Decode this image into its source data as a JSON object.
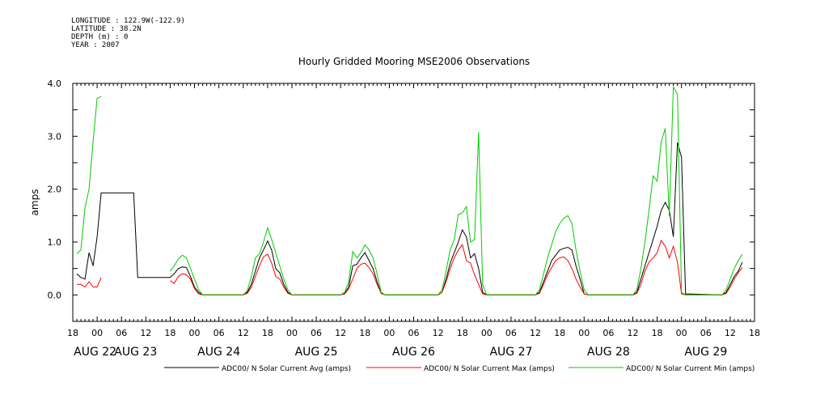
{
  "header": {
    "lines": [
      "LONGITUDE : 122.9W(-122.9)",
      "LATITUDE : 38.2N",
      "DEPTH (m) : 0",
      "YEAR : 2007"
    ]
  },
  "chart_data": {
    "type": "line",
    "title": "Hourly Gridded Mooring MSE2006 Observations",
    "ylabel": "amps",
    "ylim": [
      -0.5,
      4.0
    ],
    "yticks": [
      "0.0",
      "1.0",
      "2.0",
      "3.0",
      "4.0"
    ],
    "ytick_values": [
      0,
      1,
      2,
      3,
      4
    ],
    "xlim": [
      -6,
      162
    ],
    "xticks_hours": [
      -6,
      0,
      6,
      12,
      18,
      24,
      30,
      36,
      42,
      48,
      54,
      60,
      66,
      72,
      78,
      84,
      90,
      96,
      102,
      108,
      114,
      120,
      126,
      132,
      138,
      144,
      150,
      156,
      162
    ],
    "xtick_labels": [
      "18",
      "00",
      "06",
      "12",
      "18",
      "00",
      "06",
      "12",
      "18",
      "00",
      "06",
      "12",
      "18",
      "00",
      "06",
      "12",
      "18",
      "00",
      "06",
      "12",
      "18",
      "00",
      "06",
      "12",
      "18",
      "00",
      "06",
      "12",
      "18"
    ],
    "day_labels": [
      {
        "label": "AUG 22",
        "hour": -0.5
      },
      {
        "label": "AUG 23",
        "hour": 9.5
      },
      {
        "label": "AUG 24",
        "hour": 30
      },
      {
        "label": "AUG 25",
        "hour": 54
      },
      {
        "label": "AUG 26",
        "hour": 78
      },
      {
        "label": "AUG 27",
        "hour": 102
      },
      {
        "label": "AUG 28",
        "hour": 126
      },
      {
        "label": "AUG 29",
        "hour": 150
      }
    ],
    "series": [
      {
        "name": "ADC00/ N Solar Current Avg (amps)",
        "color": "#000000",
        "segments": [
          [
            [
              -5,
              0.4
            ],
            [
              -4,
              0.33
            ],
            [
              -3,
              0.3
            ],
            [
              -2,
              0.8
            ],
            [
              -1,
              0.55
            ],
            [
              0,
              1.1
            ],
            [
              1,
              1.93
            ],
            [
              9,
              1.93
            ],
            [
              10,
              0.33
            ],
            [
              18,
              0.33
            ],
            [
              19,
              0.4
            ],
            [
              20,
              0.5
            ],
            [
              21,
              0.53
            ],
            [
              22,
              0.52
            ],
            [
              23,
              0.35
            ],
            [
              24,
              0.15
            ],
            [
              25,
              0.05
            ],
            [
              26,
              0
            ],
            [
              36,
              0
            ],
            [
              37,
              0.05
            ],
            [
              38,
              0.2
            ],
            [
              39,
              0.45
            ],
            [
              40,
              0.7
            ],
            [
              41,
              0.85
            ],
            [
              42,
              1.02
            ],
            [
              43,
              0.85
            ],
            [
              44,
              0.5
            ],
            [
              45,
              0.42
            ],
            [
              46,
              0.2
            ],
            [
              47,
              0.05
            ],
            [
              48,
              0
            ],
            [
              60,
              0
            ],
            [
              61,
              0.03
            ],
            [
              62,
              0.15
            ],
            [
              63,
              0.55
            ],
            [
              64,
              0.58
            ],
            [
              65,
              0.7
            ],
            [
              66,
              0.8
            ],
            [
              67,
              0.65
            ],
            [
              68,
              0.5
            ],
            [
              69,
              0.25
            ],
            [
              70,
              0.03
            ],
            [
              71,
              0
            ],
            [
              84,
              0
            ],
            [
              85,
              0.05
            ],
            [
              86,
              0.3
            ],
            [
              87,
              0.6
            ],
            [
              88,
              0.8
            ],
            [
              89,
              1.0
            ],
            [
              90,
              1.23
            ],
            [
              91,
              1.1
            ],
            [
              92,
              0.7
            ],
            [
              93,
              0.78
            ],
            [
              94,
              0.5
            ],
            [
              95,
              0.05
            ],
            [
              96,
              0
            ],
            [
              108,
              0
            ],
            [
              109,
              0.05
            ],
            [
              110,
              0.25
            ],
            [
              111,
              0.45
            ],
            [
              112,
              0.65
            ],
            [
              113,
              0.75
            ],
            [
              114,
              0.85
            ],
            [
              115,
              0.88
            ],
            [
              116,
              0.9
            ],
            [
              117,
              0.85
            ],
            [
              118,
              0.55
            ],
            [
              119,
              0.3
            ],
            [
              120,
              0.02
            ],
            [
              121,
              0
            ],
            [
              132,
              0
            ],
            [
              133,
              0.05
            ],
            [
              134,
              0.3
            ],
            [
              135,
              0.55
            ],
            [
              136,
              0.8
            ],
            [
              137,
              1.05
            ],
            [
              138,
              1.3
            ],
            [
              139,
              1.6
            ],
            [
              140,
              1.75
            ],
            [
              141,
              1.6
            ],
            [
              142,
              1.1
            ],
            [
              143,
              2.88
            ],
            [
              144,
              2.6
            ],
            [
              145,
              0.02
            ],
            [
              154,
              0
            ],
            [
              155,
              0.05
            ],
            [
              156,
              0.2
            ],
            [
              157,
              0.35
            ],
            [
              158,
              0.45
            ],
            [
              159,
              0.62
            ]
          ]
        ]
      },
      {
        "name": "ADC00/ N Solar Current Max (amps)",
        "color": "#ff0000",
        "segments": [
          [
            [
              -5,
              0.2
            ],
            [
              -4,
              0.2
            ],
            [
              -3,
              0.15
            ],
            [
              -2,
              0.25
            ],
            [
              -1,
              0.15
            ],
            [
              0,
              0.15
            ],
            [
              1,
              0.33
            ]
          ],
          [
            [
              18,
              0.27
            ],
            [
              19,
              0.22
            ],
            [
              20,
              0.35
            ],
            [
              21,
              0.4
            ],
            [
              22,
              0.38
            ],
            [
              23,
              0.3
            ],
            [
              24,
              0.12
            ],
            [
              25,
              0.02
            ],
            [
              26,
              0
            ],
            [
              36,
              0
            ],
            [
              37,
              0.03
            ],
            [
              38,
              0.15
            ],
            [
              39,
              0.35
            ],
            [
              40,
              0.55
            ],
            [
              41,
              0.72
            ],
            [
              42,
              0.77
            ],
            [
              43,
              0.6
            ],
            [
              44,
              0.35
            ],
            [
              45,
              0.3
            ],
            [
              46,
              0.15
            ],
            [
              47,
              0.03
            ],
            [
              48,
              0
            ],
            [
              60,
              0
            ],
            [
              61,
              0.02
            ],
            [
              62,
              0.12
            ],
            [
              63,
              0.3
            ],
            [
              64,
              0.5
            ],
            [
              65,
              0.58
            ],
            [
              66,
              0.6
            ],
            [
              67,
              0.52
            ],
            [
              68,
              0.4
            ],
            [
              69,
              0.2
            ],
            [
              70,
              0.03
            ],
            [
              71,
              0
            ],
            [
              84,
              0
            ],
            [
              85,
              0.05
            ],
            [
              86,
              0.25
            ],
            [
              87,
              0.5
            ],
            [
              88,
              0.7
            ],
            [
              89,
              0.85
            ],
            [
              90,
              0.95
            ],
            [
              91,
              0.65
            ],
            [
              92,
              0.6
            ],
            [
              93,
              0.38
            ],
            [
              94,
              0.2
            ],
            [
              95,
              0.02
            ],
            [
              96,
              0
            ],
            [
              108,
              0
            ],
            [
              109,
              0.03
            ],
            [
              110,
              0.2
            ],
            [
              111,
              0.38
            ],
            [
              112,
              0.52
            ],
            [
              113,
              0.65
            ],
            [
              114,
              0.7
            ],
            [
              115,
              0.72
            ],
            [
              116,
              0.65
            ],
            [
              117,
              0.5
            ],
            [
              118,
              0.3
            ],
            [
              119,
              0.15
            ],
            [
              120,
              0.02
            ],
            [
              121,
              0
            ],
            [
              132,
              0
            ],
            [
              133,
              0.03
            ],
            [
              134,
              0.2
            ],
            [
              135,
              0.45
            ],
            [
              136,
              0.62
            ],
            [
              137,
              0.7
            ],
            [
              138,
              0.8
            ],
            [
              139,
              1.03
            ],
            [
              140,
              0.92
            ],
            [
              141,
              0.7
            ],
            [
              142,
              0.92
            ],
            [
              143,
              0.62
            ],
            [
              144,
              0.02
            ],
            [
              145,
              0
            ],
            [
              154,
              0
            ],
            [
              155,
              0.03
            ],
            [
              156,
              0.15
            ],
            [
              157,
              0.3
            ],
            [
              158,
              0.42
            ],
            [
              159,
              0.52
            ]
          ]
        ]
      },
      {
        "name": "ADC00/ N Solar Current Min (amps)",
        "color": "#00cc00",
        "segments": [
          [
            [
              -5,
              0.78
            ],
            [
              -4,
              0.85
            ],
            [
              -3,
              1.65
            ],
            [
              -2,
              2.0
            ],
            [
              -1,
              2.9
            ],
            [
              0,
              3.72
            ],
            [
              1,
              3.75
            ]
          ],
          [
            [
              18,
              0.45
            ],
            [
              19,
              0.55
            ],
            [
              20,
              0.68
            ],
            [
              21,
              0.75
            ],
            [
              22,
              0.7
            ],
            [
              23,
              0.5
            ],
            [
              24,
              0.3
            ],
            [
              25,
              0.1
            ],
            [
              26,
              0
            ],
            [
              36,
              0
            ],
            [
              37,
              0.08
            ],
            [
              38,
              0.35
            ],
            [
              39,
              0.7
            ],
            [
              40,
              0.78
            ],
            [
              41,
              1.0
            ],
            [
              42,
              1.27
            ],
            [
              43,
              1.05
            ],
            [
              44,
              0.8
            ],
            [
              45,
              0.55
            ],
            [
              46,
              0.3
            ],
            [
              47,
              0.1
            ],
            [
              48,
              0
            ],
            [
              60,
              0
            ],
            [
              61,
              0.05
            ],
            [
              62,
              0.25
            ],
            [
              63,
              0.82
            ],
            [
              64,
              0.7
            ],
            [
              65,
              0.8
            ],
            [
              66,
              0.95
            ],
            [
              67,
              0.85
            ],
            [
              68,
              0.7
            ],
            [
              69,
              0.4
            ],
            [
              70,
              0.05
            ],
            [
              71,
              0
            ],
            [
              84,
              0
            ],
            [
              85,
              0.1
            ],
            [
              86,
              0.45
            ],
            [
              87,
              0.85
            ],
            [
              88,
              1.05
            ],
            [
              89,
              1.52
            ],
            [
              90,
              1.55
            ],
            [
              91,
              1.67
            ],
            [
              92,
              1.0
            ],
            [
              93,
              1.05
            ],
            [
              94,
              3.08
            ],
            [
              95,
              0.2
            ],
            [
              96,
              0
            ],
            [
              108,
              0
            ],
            [
              109,
              0.1
            ],
            [
              110,
              0.4
            ],
            [
              111,
              0.7
            ],
            [
              112,
              0.95
            ],
            [
              113,
              1.2
            ],
            [
              114,
              1.35
            ],
            [
              115,
              1.45
            ],
            [
              116,
              1.5
            ],
            [
              117,
              1.35
            ],
            [
              118,
              0.85
            ],
            [
              119,
              0.45
            ],
            [
              120,
              0.1
            ],
            [
              121,
              0
            ],
            [
              132,
              0
            ],
            [
              133,
              0.1
            ],
            [
              134,
              0.5
            ],
            [
              135,
              1.0
            ],
            [
              136,
              1.6
            ],
            [
              137,
              2.25
            ],
            [
              138,
              2.15
            ],
            [
              139,
              2.9
            ],
            [
              140,
              3.15
            ],
            [
              141,
              1.5
            ],
            [
              142,
              3.93
            ],
            [
              143,
              3.8
            ],
            [
              144,
              0.05
            ],
            [
              145,
              0
            ],
            [
              154,
              0
            ],
            [
              155,
              0.1
            ],
            [
              156,
              0.3
            ],
            [
              157,
              0.5
            ],
            [
              158,
              0.65
            ],
            [
              159,
              0.77
            ]
          ]
        ]
      }
    ]
  }
}
